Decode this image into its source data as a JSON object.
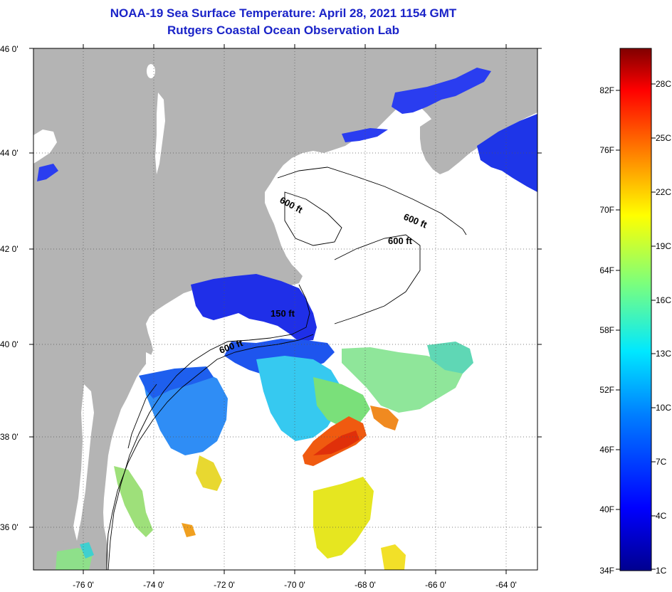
{
  "title": {
    "line1": "NOAA-19 Sea Surface Temperature:  April 28, 2021 1154 GMT",
    "line2": "Rutgers Coastal Ocean Observation Lab"
  },
  "axes": {
    "lat_labels": [
      "46 0'",
      "44 0'",
      "42 0'",
      "40 0'",
      "38 0'",
      "36 0'"
    ],
    "lon_labels": [
      "-76 0'",
      "-74 0'",
      "-72 0'",
      "-70 0'",
      "-68 0'",
      "-66 0'",
      "-64 0'"
    ]
  },
  "contours": {
    "labels": [
      "600 ft",
      "600 ft",
      "600 ft",
      "150 ft",
      "600 ft"
    ]
  },
  "colorbar": {
    "fahrenheit": [
      "82F",
      "76F",
      "70F",
      "64F",
      "58F",
      "52F",
      "46F",
      "40F",
      "34F"
    ],
    "celsius": [
      "28C",
      "25C",
      "22C",
      "19C",
      "16C",
      "13C",
      "10C",
      "7C",
      "4C",
      "1C"
    ]
  },
  "colors": {
    "land": "#b4b4b4",
    "ocean_nodata": "#ffffff",
    "title": "#1a23c8"
  }
}
